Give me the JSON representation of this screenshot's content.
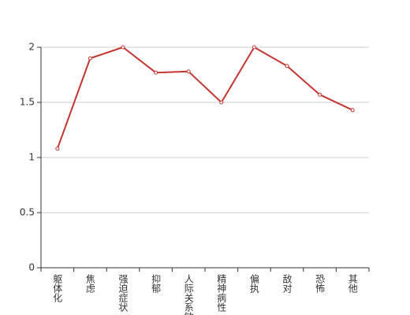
{
  "chart_data": {
    "type": "line",
    "categories": [
      "躯体化",
      "焦虑",
      "强迫症状",
      "抑郁",
      "人际关系敏感",
      "精神病性",
      "偏执",
      "敌对",
      "恐怖",
      "其他"
    ],
    "values": [
      1.08,
      1.9,
      2.0,
      1.77,
      1.78,
      1.5,
      2.0,
      1.83,
      1.57,
      1.43
    ],
    "color": "#c23531",
    "ylim": [
      0,
      2
    ],
    "yticks": [
      0,
      0.5,
      1,
      1.5,
      2
    ],
    "grid": true
  }
}
